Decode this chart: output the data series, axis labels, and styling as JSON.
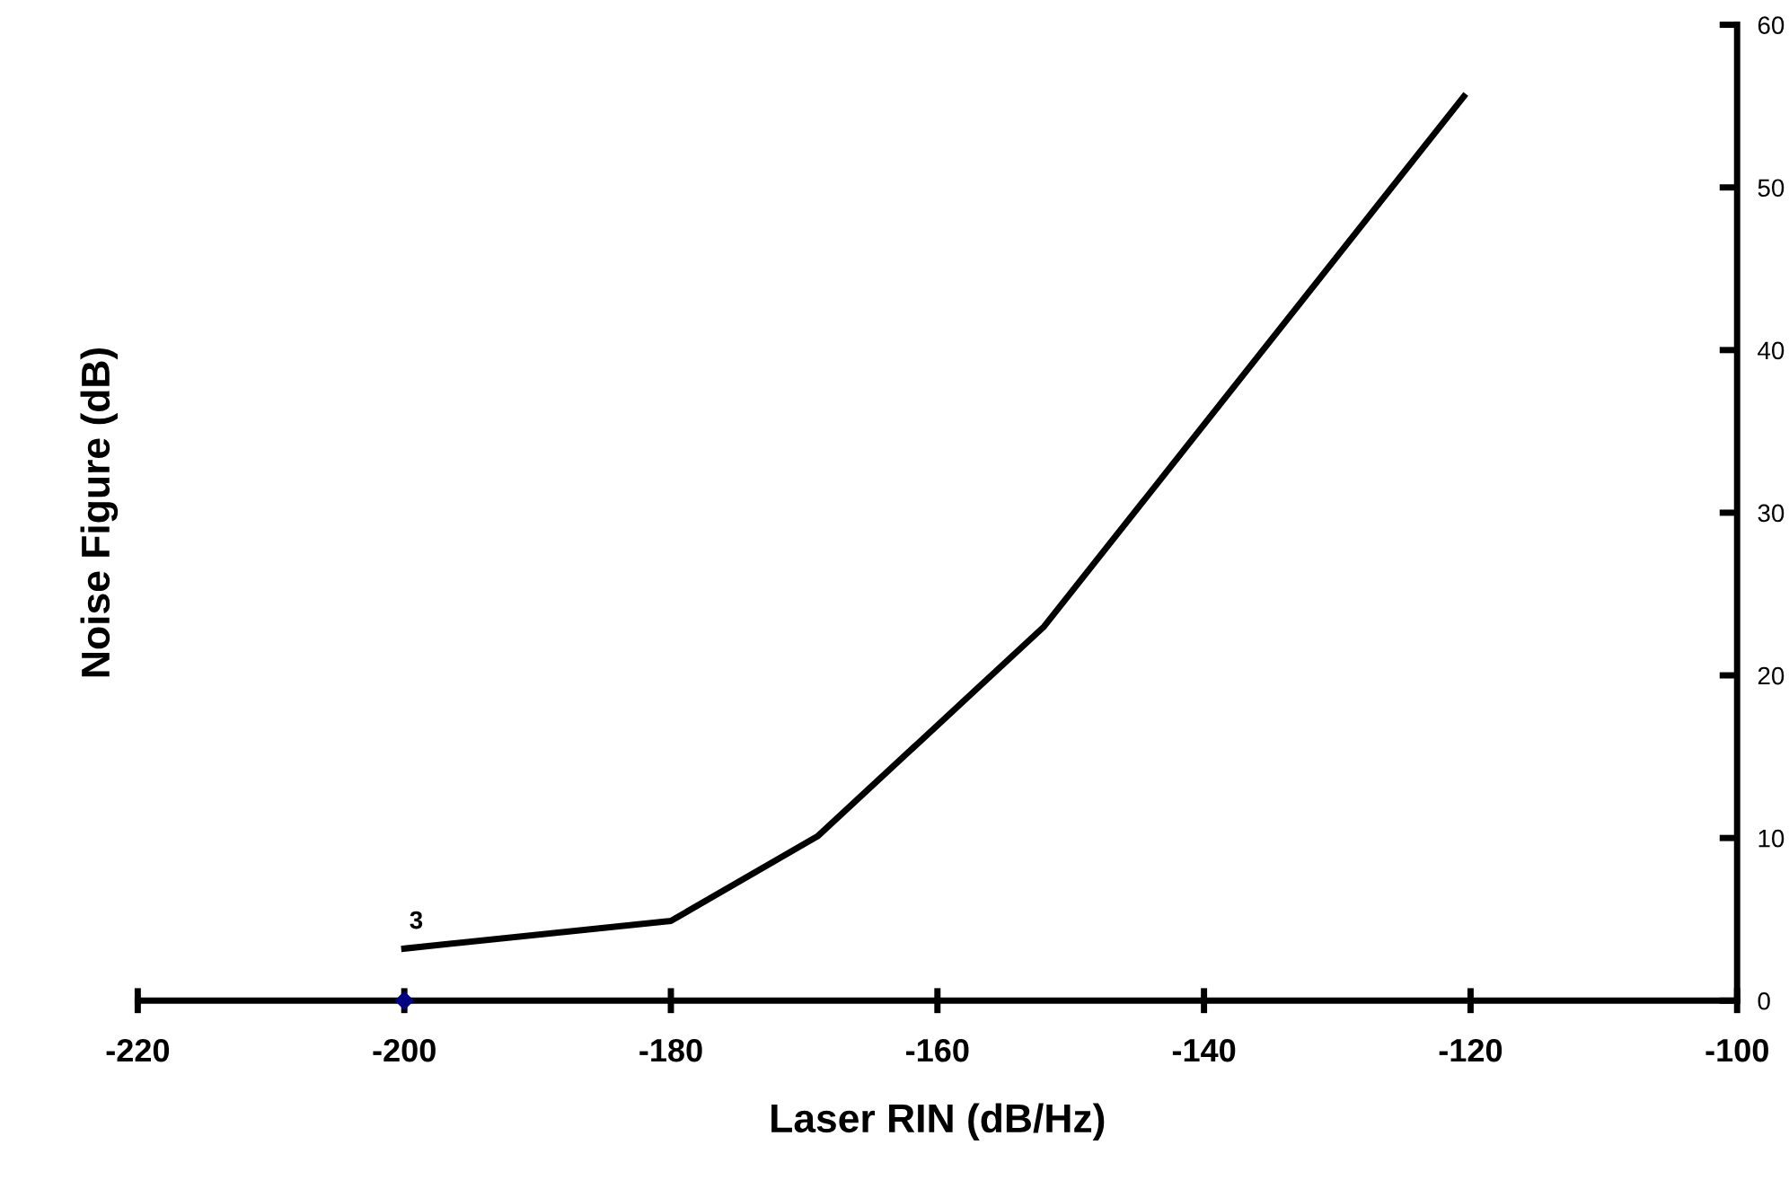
{
  "chart_data": {
    "type": "line",
    "xlabel": "Laser RIN (dB/Hz)",
    "ylabel": "Noise Figure (dB)",
    "xlim": [
      -220,
      -100
    ],
    "xticks": [
      -220,
      -200,
      -180,
      -160,
      -140,
      -120,
      -100
    ],
    "ylim": [
      0,
      60
    ],
    "yticks": [
      0,
      10,
      20,
      30,
      40,
      50,
      60
    ],
    "grid": false,
    "legend": false,
    "series": [
      {
        "color": "#000000",
        "x": [
          -200,
          -180,
          -169,
          -152,
          -120.5
        ],
        "values": [
          3.2,
          4.9,
          10.1,
          23,
          55.6
        ],
        "marker": "none",
        "line_style": "solid"
      },
      {
        "type": "scatter",
        "color": "#000080",
        "x": [
          -200
        ],
        "values": [
          0
        ],
        "marker": "diamond"
      }
    ],
    "annotations": [
      {
        "text": "3",
        "x": -200,
        "y": 3.2
      }
    ]
  }
}
